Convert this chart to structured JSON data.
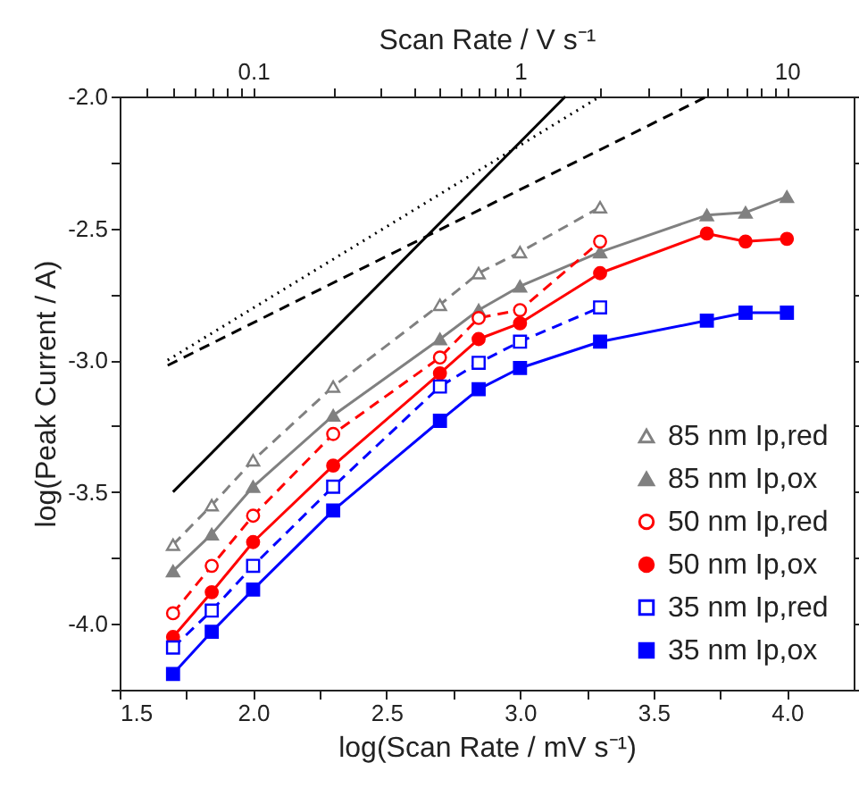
{
  "chart_data": {
    "type": "line",
    "xlabel": "log(Scan Rate / mV s⁻¹)",
    "ylabel": "log(Peak Current / A)",
    "x2label": "Scan Rate / V s⁻¹",
    "xlim": [
      1.5,
      4.25
    ],
    "ylim": [
      -4.25,
      -2.0
    ],
    "xticks": [
      {
        "value": 1.5,
        "label": "1.5"
      },
      {
        "value": 1.75,
        "label": null
      },
      {
        "value": 2.0,
        "label": "2.0"
      },
      {
        "value": 2.25,
        "label": null
      },
      {
        "value": 2.5,
        "label": "2.5"
      },
      {
        "value": 2.75,
        "label": null
      },
      {
        "value": 3.0,
        "label": "3.0"
      },
      {
        "value": 3.25,
        "label": null
      },
      {
        "value": 3.5,
        "label": "3.5"
      },
      {
        "value": 3.75,
        "label": null
      },
      {
        "value": 4.0,
        "label": "4.0"
      }
    ],
    "yticks": [
      {
        "value": -4.25,
        "label": null
      },
      {
        "value": -4.0,
        "label": "-4.0"
      },
      {
        "value": -3.75,
        "label": null
      },
      {
        "value": -3.5,
        "label": "-3.5"
      },
      {
        "value": -3.25,
        "label": null
      },
      {
        "value": -3.0,
        "label": "-3.0"
      },
      {
        "value": -2.75,
        "label": null
      },
      {
        "value": -2.5,
        "label": "-2.5"
      },
      {
        "value": -2.25,
        "label": null
      },
      {
        "value": -2.0,
        "label": "-2.0"
      }
    ],
    "x2lim": [
      0.0316,
      17.78
    ],
    "x2ticks": [
      {
        "value": 0.04,
        "label": null
      },
      {
        "value": 0.05,
        "label": null
      },
      {
        "value": 0.06,
        "label": null
      },
      {
        "value": 0.07,
        "label": null
      },
      {
        "value": 0.08,
        "label": null
      },
      {
        "value": 0.09,
        "label": null
      },
      0.1,
      {
        "value": 0.2,
        "label": null
      },
      {
        "value": 0.3,
        "label": null
      },
      {
        "value": 0.4,
        "label": null
      },
      {
        "value": 0.5,
        "label": null
      },
      {
        "value": 0.6,
        "label": null
      },
      {
        "value": 0.7,
        "label": null
      },
      {
        "value": 0.8,
        "label": null
      },
      {
        "value": 0.9,
        "label": null
      },
      1,
      {
        "value": 2,
        "label": null
      },
      {
        "value": 3,
        "label": null
      },
      {
        "value": 4,
        "label": null
      },
      {
        "value": 5,
        "label": null
      },
      {
        "value": 6,
        "label": null
      },
      {
        "value": 7,
        "label": null
      },
      {
        "value": 8,
        "label": null
      },
      {
        "value": 9,
        "label": null
      },
      10
    ],
    "log": "x2",
    "grid": false,
    "legend": "bottom right",
    "x": [
      1.7,
      1.845,
      2.0,
      2.3,
      2.7,
      2.845,
      3.0,
      3.3,
      3.7,
      3.845,
      4.0
    ],
    "series": [
      {
        "name": "85 nm Ip,red",
        "color": "#808080",
        "line_style": "dashed",
        "marker": "triangle",
        "values": [
          -3.7,
          -3.55,
          -3.38,
          -3.1,
          -2.79,
          -2.67,
          -2.59,
          -2.42,
          null,
          null,
          null
        ]
      },
      {
        "name": "85 nm Ip,ox",
        "color": "#808080",
        "line_style": "solid",
        "marker": "triangle",
        "values": [
          -3.8,
          -3.66,
          -3.48,
          -3.21,
          -2.92,
          -2.81,
          -2.72,
          -2.59,
          -2.45,
          -2.44,
          -2.38
        ]
      },
      {
        "name": "50 nm Ip,red",
        "color": "#ff0000",
        "line_style": "dashed",
        "marker": "circle",
        "values": [
          -3.96,
          -3.78,
          -3.59,
          -3.28,
          -2.99,
          -2.84,
          -2.81,
          -2.55,
          null,
          null,
          null
        ]
      },
      {
        "name": "50 nm Ip,ox",
        "color": "#ff0000",
        "line_style": "solid",
        "marker": "circle",
        "values": [
          -4.05,
          -3.88,
          -3.69,
          -3.4,
          -3.05,
          -2.92,
          -2.86,
          -2.67,
          -2.52,
          -2.55,
          -2.54
        ]
      },
      {
        "name": "35 nm Ip,red",
        "color": "#0000ff",
        "line_style": "dashed",
        "marker": "square",
        "values": [
          -4.09,
          -3.95,
          -3.78,
          -3.48,
          -3.1,
          -3.01,
          -2.93,
          -2.8,
          null,
          null,
          null
        ]
      },
      {
        "name": "35 nm Ip,ox",
        "color": "#0000ff",
        "line_style": "solid",
        "marker": "square",
        "values": [
          -4.19,
          -4.03,
          -3.87,
          -3.57,
          -3.23,
          -3.11,
          -3.03,
          -2.93,
          -2.85,
          -2.82,
          -2.82
        ]
      },
      {
        "type": "line",
        "color": "#000000",
        "line_style": "solid",
        "marker": "none",
        "x": [
          1.7,
          3.17
        ],
        "values": [
          -3.5,
          -2.0
        ]
      },
      {
        "type": "line",
        "color": "#000000",
        "line_style": "dotted",
        "marker": "none",
        "x": [
          1.68,
          3.3
        ],
        "values": [
          -3.0,
          -2.0
        ]
      },
      {
        "type": "line",
        "color": "#000000",
        "line_style": "dashed",
        "marker": "none",
        "x": [
          1.68,
          3.7
        ],
        "values": [
          -3.02,
          -2.0
        ]
      }
    ]
  }
}
